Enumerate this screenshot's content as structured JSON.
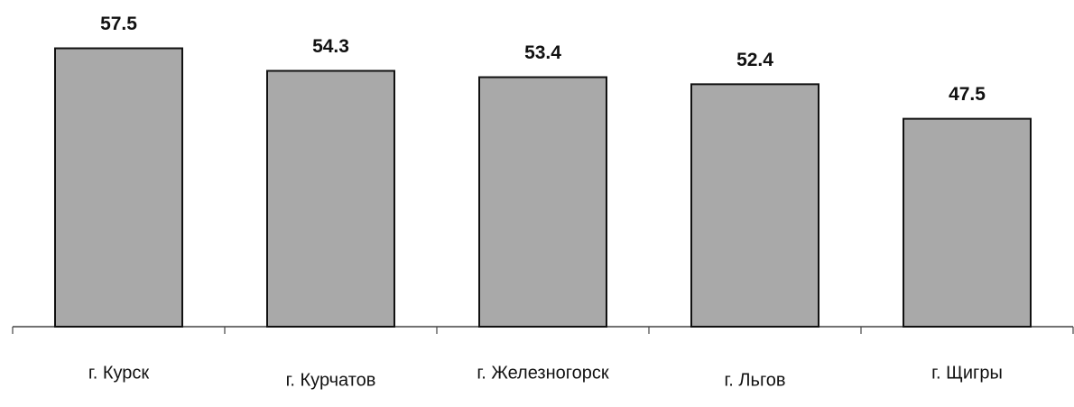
{
  "chart_data": {
    "type": "bar",
    "categories": [
      "г. Курск",
      "г. Курчатов",
      "г. Железногорск",
      "г. Льгов",
      "г. Щигры"
    ],
    "values": [
      57.5,
      54.3,
      53.4,
      52.4,
      47.5
    ],
    "color": "#a9a9a9",
    "ylim": [
      18,
      60
    ]
  }
}
